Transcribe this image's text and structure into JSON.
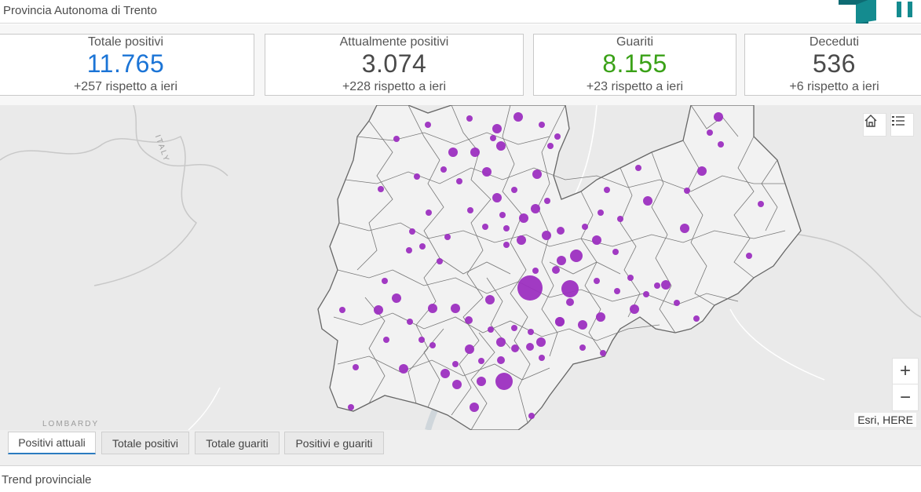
{
  "header": {
    "title": "Provincia Autonoma di Trento"
  },
  "cards": [
    {
      "label": "Totale positivi",
      "value": "11.765",
      "delta": "+257 rispetto a ieri",
      "color": "#1b74d6"
    },
    {
      "label": "Attualmente positivi",
      "value": "3.074",
      "delta": "+228 rispetto a ieri",
      "color": "#4a4a4a"
    },
    {
      "label": "Guariti",
      "value": "8.155",
      "delta": "+23 rispetto a ieri",
      "color": "#3aa117"
    },
    {
      "label": "Deceduti",
      "value": "536",
      "delta": "+6 rispetto a ieri",
      "color": "#4a4a4a"
    }
  ],
  "map": {
    "attribution": "Esri, HERE",
    "labels": {
      "italy": "ITALY",
      "lombardy": "LOMBARDY"
    },
    "zoom_in": "+",
    "zoom_out": "−",
    "home_icon": "home-icon",
    "legend_icon": "legend-list-icon",
    "marker_color": "#9c2fc0"
  },
  "tabs": [
    {
      "label": "Positivi attuali",
      "active": true
    },
    {
      "label": "Totale positivi",
      "active": false
    },
    {
      "label": "Totale guariti",
      "active": false
    },
    {
      "label": "Positivi e guariti",
      "active": false
    }
  ],
  "trend_title": "Trend provinciale"
}
